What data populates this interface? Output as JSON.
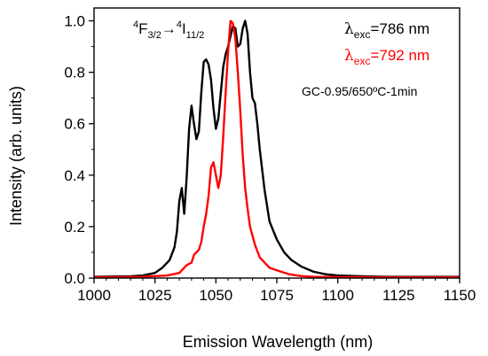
{
  "chart_data": {
    "type": "line",
    "xlabel": "Emission Wavelength (nm)",
    "ylabel": "Intensity (arb. units)",
    "xlim": [
      1000,
      1150
    ],
    "ylim": [
      0,
      1.05
    ],
    "xticks": [
      1000,
      1025,
      1050,
      1075,
      1100,
      1125,
      1150
    ],
    "yticks": [
      0.0,
      0.2,
      0.4,
      0.6,
      0.8,
      1.0
    ],
    "xtick_labels": [
      "1000",
      "1025",
      "1050",
      "1075",
      "1100",
      "1125",
      "1150"
    ],
    "ytick_labels": [
      "0.0",
      "0.2",
      "0.4",
      "0.6",
      "0.8",
      "1.0"
    ],
    "grid": false,
    "transition": {
      "base1": "4",
      "term1": "F",
      "sub1": "3/2",
      "arrow": "→",
      "base2": "4",
      "term2": "I",
      "sub2": "11/2"
    },
    "legend": [
      {
        "symbol": "λ",
        "sub": "exc",
        "text": "=786 nm",
        "color": "#000000"
      },
      {
        "symbol": "λ",
        "sub": "exc",
        "text": "=792 nm",
        "color": "#ff0000"
      }
    ],
    "sample_label": "GC-0.95/650ºC-1min",
    "series": [
      {
        "color": "#000000",
        "x": [
          1000,
          1015,
          1020,
          1025,
          1028,
          1031,
          1033,
          1034,
          1035,
          1036,
          1037,
          1038,
          1039,
          1040,
          1041,
          1042,
          1043,
          1044,
          1045,
          1046,
          1047,
          1048,
          1049,
          1050,
          1051,
          1052,
          1053,
          1054,
          1055,
          1056,
          1057,
          1058,
          1059,
          1060,
          1061,
          1062,
          1063,
          1064,
          1065,
          1066,
          1067,
          1068,
          1070,
          1072,
          1075,
          1078,
          1081,
          1085,
          1090,
          1095,
          1100,
          1110,
          1120,
          1130,
          1150
        ],
        "y": [
          0.005,
          0.007,
          0.01,
          0.02,
          0.04,
          0.07,
          0.12,
          0.18,
          0.3,
          0.35,
          0.25,
          0.39,
          0.58,
          0.67,
          0.6,
          0.54,
          0.57,
          0.72,
          0.84,
          0.85,
          0.83,
          0.77,
          0.66,
          0.58,
          0.62,
          0.72,
          0.82,
          0.87,
          0.9,
          0.94,
          0.98,
          0.97,
          0.9,
          0.91,
          0.97,
          1.0,
          0.95,
          0.8,
          0.7,
          0.68,
          0.6,
          0.5,
          0.34,
          0.22,
          0.15,
          0.1,
          0.07,
          0.045,
          0.025,
          0.015,
          0.01,
          0.007,
          0.005,
          0.005,
          0.005
        ]
      },
      {
        "color": "#ff0000",
        "x": [
          1000,
          1020,
          1030,
          1035,
          1037,
          1038,
          1040,
          1041,
          1042,
          1043,
          1044,
          1045,
          1046,
          1047,
          1048,
          1049,
          1050,
          1051,
          1052,
          1053,
          1054,
          1055,
          1056,
          1057,
          1058,
          1059,
          1060,
          1061,
          1062,
          1063,
          1064,
          1066,
          1068,
          1070,
          1072,
          1075,
          1080,
          1085,
          1090,
          1100,
          1120,
          1150
        ],
        "y": [
          0.003,
          0.005,
          0.01,
          0.02,
          0.04,
          0.05,
          0.06,
          0.09,
          0.1,
          0.11,
          0.14,
          0.2,
          0.25,
          0.32,
          0.43,
          0.45,
          0.4,
          0.35,
          0.4,
          0.55,
          0.72,
          0.88,
          1.0,
          0.99,
          0.93,
          0.8,
          0.65,
          0.48,
          0.35,
          0.27,
          0.2,
          0.13,
          0.08,
          0.06,
          0.04,
          0.03,
          0.015,
          0.008,
          0.005,
          0.004,
          0.003,
          0.003
        ]
      }
    ]
  }
}
